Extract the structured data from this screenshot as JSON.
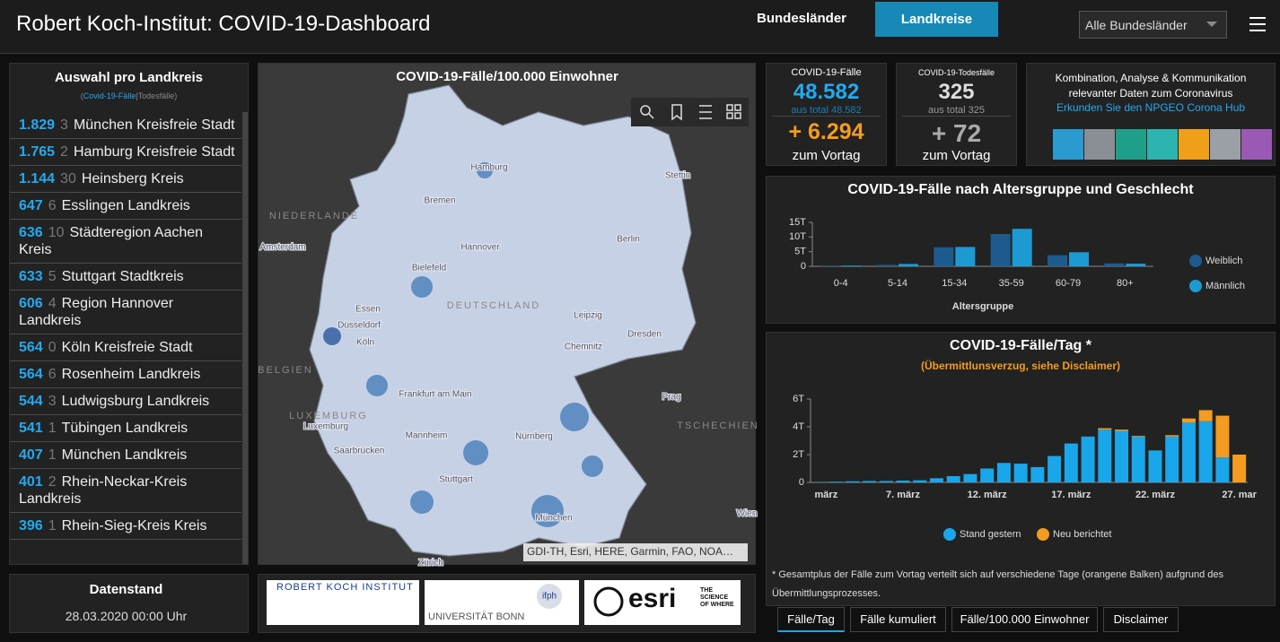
{
  "header": {
    "title": "Robert Koch-Institut: COVID-19-Dashboard",
    "tabs": [
      "Bundesländer",
      "Landkreise"
    ],
    "dropdown": "Alle Bundesländer"
  },
  "list": {
    "title": "Auswahl pro Landkreis",
    "legend": [
      "(",
      "Covid-19-Fälle",
      "|",
      "Todesfälle",
      ")"
    ],
    "rows": [
      {
        "cases": "1.829",
        "deaths": 3,
        "name": "München Kreisfreie Stadt"
      },
      {
        "cases": "1.765",
        "deaths": 2,
        "name": "Hamburg Kreisfreie Stadt"
      },
      {
        "cases": "1.144",
        "deaths": 30,
        "name": "Heinsberg Kreis"
      },
      {
        "cases": 647,
        "deaths": 6,
        "name": "Esslingen Landkreis"
      },
      {
        "cases": 636,
        "deaths": 10,
        "name": "Städteregion Aachen Kreis"
      },
      {
        "cases": 633,
        "deaths": 5,
        "name": "Stuttgart Stadtkreis"
      },
      {
        "cases": 606,
        "deaths": 4,
        "name": "Region Hannover Landkreis"
      },
      {
        "cases": 564,
        "deaths": 0,
        "name": "Köln Kreisfreie Stadt"
      },
      {
        "cases": 564,
        "deaths": 6,
        "name": "Rosenheim Landkreis"
      },
      {
        "cases": 544,
        "deaths": 3,
        "name": "Ludwigsburg Landkreis"
      },
      {
        "cases": 541,
        "deaths": 1,
        "name": "Tübingen Landkreis"
      },
      {
        "cases": 407,
        "deaths": 1,
        "name": "München Landkreis"
      },
      {
        "cases": 401,
        "deaths": 2,
        "name": "Rhein-Neckar-Kreis Landkreis"
      },
      {
        "cases": 396,
        "deaths": 1,
        "name": "Rhein-Sieg-Kreis Kreis"
      }
    ]
  },
  "datenstand": {
    "title": "Datenstand",
    "value": "28.03.2020 00:00 Uhr"
  },
  "map": {
    "title": "COVID-19-Fälle/100.000 Einwohner",
    "labels": [
      "NIEDERLANDE",
      "Amsterdam",
      "Hamburg",
      "Bremen",
      "Hannover",
      "Berlin",
      "Stettin",
      "Bielefeld",
      "Essen",
      "Düsseldorf",
      "Köln",
      "DEUTSCHLAND",
      "Leipzig",
      "Dresden",
      "Chemnitz",
      "BELGIEN",
      "Frankfurt am Main",
      "LUXEMBURG",
      "Luxemburg",
      "Mannheim",
      "Nürnberg",
      "Saarbrücken",
      "Stuttgart",
      "München",
      "Prag",
      "TSCHECHIEN",
      "Wien",
      "Zürich"
    ],
    "attribution": "GDI-TH, Esri, HERE, Garmin, FAO, NOA…"
  },
  "logos": [
    "ROBERT KOCH INSTITUT",
    "UNIVERSITÄT BONN",
    "ifph",
    "esri",
    "THE SCIENCE OF WHERE"
  ],
  "kpis": [
    {
      "label": "COVID-19-Fälle",
      "value": "48.582",
      "total": "aus total 48.582",
      "delta": "+ 6.294",
      "delta_label": "zum Vortag"
    },
    {
      "label": "COVID-19-Todesfälle",
      "value": 325,
      "total": "aus total 325",
      "delta": "+ 72",
      "delta_label": "zum Vortag"
    }
  ],
  "hub": {
    "text": "Kombination, Analyse & Kommunikation relevanter Daten zum Coronavirus",
    "link": "Erkunden Sie den NPGEO Corona Hub"
  },
  "chart_data": [
    {
      "type": "bar",
      "title": "COVID-19-Fälle nach Altersgruppe und Geschlecht",
      "xlabel": "Altersgruppe",
      "categories": [
        "0-4",
        "5-14",
        "15-34",
        "35-59",
        "60-79",
        "80+"
      ],
      "series": [
        {
          "name": "Weiblich",
          "color": "#1d5b8e",
          "values": [
            200,
            500,
            6500,
            11000,
            3800,
            1000
          ]
        },
        {
          "name": "Männlich",
          "color": "#1e9ad2",
          "values": [
            250,
            800,
            6600,
            12800,
            4800,
            900
          ]
        }
      ],
      "ylim": [
        0,
        15000
      ],
      "yticks": [
        0,
        {
          "value": 5000,
          "label": "5T"
        },
        {
          "value": 10000,
          "label": "10T"
        },
        {
          "value": 15000,
          "label": "15T"
        }
      ]
    },
    {
      "type": "stacked_bar",
      "title": "COVID-19-Fälle/Tag *",
      "subtitle": "(Übermittlunsverzug, siehe Disclaimer)",
      "categories": [
        "märz",
        null,
        null,
        null,
        null,
        "7. märz",
        null,
        null,
        null,
        null,
        "12. märz",
        null,
        null,
        null,
        null,
        "17. märz",
        null,
        null,
        null,
        null,
        "22. märz",
        null,
        null,
        null,
        null,
        "27. mar"
      ],
      "series": [
        {
          "name": "Stand gestern",
          "color": "#1aa6ea",
          "values": [
            20,
            50,
            80,
            100,
            100,
            130,
            150,
            300,
            450,
            600,
            1000,
            1400,
            1350,
            1100,
            1900,
            2800,
            3300,
            3800,
            3700,
            3300,
            2300,
            3300,
            4300,
            4400,
            1800,
            0
          ]
        },
        {
          "name": "Neu berichtet",
          "color": "#f39c1f",
          "values": [
            0,
            0,
            0,
            0,
            0,
            0,
            0,
            0,
            0,
            0,
            0,
            0,
            0,
            0,
            0,
            0,
            0,
            100,
            100,
            50,
            0,
            100,
            300,
            800,
            3000,
            2000
          ]
        }
      ],
      "ylim": [
        0,
        6000
      ],
      "yticks": [
        0,
        {
          "value": 2000,
          "label": "2T"
        },
        {
          "value": 4000,
          "label": "4T"
        },
        {
          "value": 6000,
          "label": "6T"
        }
      ],
      "footnote": "* Gesamtplus der Fälle zum Vortag verteilt sich auf verschiedene Tage (orangene Balken) aufgrund des Übermittlungsprozesses."
    }
  ],
  "bottom_tabs": [
    "Fälle/Tag",
    "Fälle kumuliert",
    "Fälle/100.000 Einwohner",
    "Disclaimer"
  ]
}
